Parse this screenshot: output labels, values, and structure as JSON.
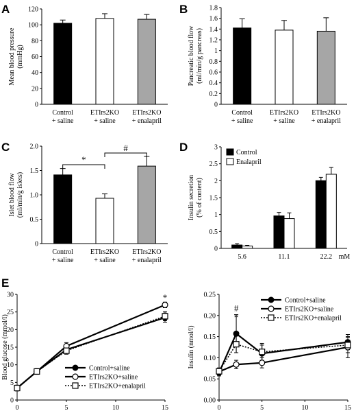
{
  "chart_data": [
    {
      "panel": "A",
      "type": "bar",
      "ylabel": [
        "Mean blood pressure",
        "(mmHg)"
      ],
      "ylim": [
        0,
        120
      ],
      "yticks": [
        0,
        20,
        40,
        60,
        80,
        100,
        120
      ],
      "categories": [
        [
          "Control",
          "+ saline"
        ],
        [
          "ETIrs2KO",
          "+ saline"
        ],
        [
          "ETIrs2KO",
          "+ enalapril"
        ]
      ],
      "values": [
        102,
        108,
        107
      ],
      "errors": [
        4,
        6,
        6
      ],
      "colors": [
        "#000000",
        "#ffffff",
        "#a6a6a6"
      ]
    },
    {
      "panel": "B",
      "type": "bar",
      "ylabel": [
        "Pancreatic blood flow",
        "(ml/min/g pancreas)"
      ],
      "ylim": [
        0,
        1.8
      ],
      "yticks": [
        "0",
        "0.2",
        "0.4",
        "0.6",
        "0.8",
        "1",
        "1.2",
        "1.4",
        "1.6",
        "1.8"
      ],
      "categories": [
        [
          "Control",
          "+ saline"
        ],
        [
          "ETIrs2KO",
          "+ saline"
        ],
        [
          "ETIrs2KO",
          "+ enalapril"
        ]
      ],
      "values": [
        1.42,
        1.38,
        1.36
      ],
      "errors": [
        0.17,
        0.18,
        0.25
      ],
      "colors": [
        "#000000",
        "#ffffff",
        "#a6a6a6"
      ]
    },
    {
      "panel": "C",
      "type": "bar",
      "ylabel": [
        "Islet blood flow",
        "(ml/min/g islets)"
      ],
      "ylim": [
        0,
        2.0
      ],
      "yticks": [
        "0",
        "0.5",
        "1.0",
        "1.5",
        "2.0"
      ],
      "categories": [
        [
          "Control",
          "+ saline"
        ],
        [
          "ETIrs2KO",
          "+ saline"
        ],
        [
          "ETIrs2KO",
          "+ enalapril"
        ]
      ],
      "values": [
        1.41,
        0.93,
        1.59
      ],
      "errors": [
        0.13,
        0.09,
        0.2
      ],
      "colors": [
        "#000000",
        "#ffffff",
        "#a6a6a6"
      ],
      "annotations": [
        {
          "from": 0,
          "to": 1,
          "label": "*"
        },
        {
          "from": 1,
          "to": 2,
          "label": "#"
        }
      ]
    },
    {
      "panel": "D",
      "type": "bar",
      "ylabel": [
        "Insulin secretion",
        "(% of content)"
      ],
      "ylim": [
        0,
        3
      ],
      "yticks": [
        "0",
        "0.5",
        "1",
        "1.5",
        "2",
        "2.5",
        "3"
      ],
      "categories": [
        "5.6",
        "11.1",
        "22.2"
      ],
      "xunit": "mM",
      "series": [
        {
          "name": "Control",
          "values": [
            0.1,
            0.96,
            2.0
          ],
          "errors": [
            0.04,
            0.1,
            0.1
          ],
          "color": "#000000"
        },
        {
          "name": "Enalapril",
          "values": [
            0.07,
            0.88,
            2.19
          ],
          "errors": [
            0.02,
            0.17,
            0.2
          ],
          "color": "#ffffff"
        }
      ],
      "legend": "top-left"
    },
    {
      "panel": "E",
      "type": "line",
      "ylabel": [
        "Blood glucose (mmol/l)"
      ],
      "ylim": [
        0,
        30
      ],
      "yticks": [
        "0",
        "5",
        "10",
        "15",
        "20",
        "25",
        "30"
      ],
      "xlim": [
        0,
        15
      ],
      "xticks": [
        "0",
        "5",
        "10",
        "15"
      ],
      "x": [
        0,
        2,
        5,
        15
      ],
      "series": [
        {
          "name": "Control+saline",
          "values": [
            3.4,
            8.1,
            14.3,
            23.4
          ],
          "errors": [
            0.8,
            0.8,
            1.0,
            1.3
          ],
          "marker": "filled-circle",
          "dash": "solid"
        },
        {
          "name": "ETIrs2KO+saline",
          "values": [
            3.4,
            8.1,
            15.3,
            27.0
          ],
          "errors": [
            0.8,
            0.8,
            1.0,
            0.8
          ],
          "marker": "open-circle",
          "dash": "solid"
        },
        {
          "name": "ETIrs2KO+enalapril",
          "values": [
            3.4,
            8.1,
            14.0,
            23.8
          ],
          "errors": [
            0.8,
            0.8,
            1.0,
            1.3
          ],
          "marker": "open-square",
          "dash": "dotted"
        }
      ],
      "annotations": [
        {
          "x": 15,
          "y": 29,
          "label": "*"
        }
      ],
      "legend": "bottom-right"
    },
    {
      "panel": "E",
      "type": "line",
      "ylabel": [
        "Insulin (nmol/l)"
      ],
      "ylim": [
        0,
        0.25
      ],
      "yticks": [
        "0.00",
        "0.05",
        "0.10",
        "0.15",
        "0.20",
        "0.25"
      ],
      "xlim": [
        0,
        15
      ],
      "xticks": [
        "0",
        "5",
        "10",
        "15"
      ],
      "x": [
        0,
        2,
        5,
        15
      ],
      "series": [
        {
          "name": "Control+saline",
          "values": [
            0.065,
            0.157,
            0.11,
            0.137
          ],
          "errors": [
            0.008,
            0.045,
            0.02,
            0.018
          ],
          "marker": "filled-circle",
          "dash": "solid"
        },
        {
          "name": "ETIrs2KO+saline",
          "values": [
            0.067,
            0.084,
            0.088,
            0.125
          ],
          "errors": [
            0.008,
            0.01,
            0.012,
            0.025
          ],
          "marker": "open-circle",
          "dash": "solid"
        },
        {
          "name": "ETIrs2KO+enalapril",
          "values": [
            0.068,
            0.132,
            0.114,
            0.13
          ],
          "errors": [
            0.008,
            0.02,
            0.02,
            0.018
          ],
          "marker": "open-square",
          "dash": "dotted"
        }
      ],
      "annotations": [
        {
          "x": 2,
          "y": 0.217,
          "label": "#"
        },
        {
          "x": 2,
          "y": 0.195,
          "label": "*"
        }
      ],
      "legend": "top-right"
    }
  ]
}
